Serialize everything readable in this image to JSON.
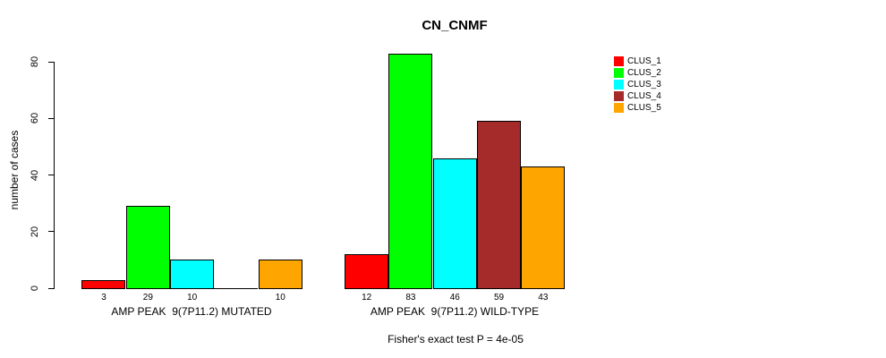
{
  "chart_data": {
    "type": "bar",
    "title": "CN_CNMF",
    "ylabel": "number of cases",
    "y_ticks": [
      0,
      20,
      40,
      60,
      80
    ],
    "ylim": [
      0,
      84
    ],
    "grid": false,
    "legend_position": "right",
    "categories": [
      "AMP PEAK  9(7P11.2) MUTATED",
      "AMP PEAK  9(7P11.2) WILD-TYPE"
    ],
    "series": [
      {
        "name": "CLUS_1",
        "color": "#FF0000",
        "values": [
          3,
          12
        ]
      },
      {
        "name": "CLUS_2",
        "color": "#00FF00",
        "values": [
          29,
          83
        ]
      },
      {
        "name": "CLUS_3",
        "color": "#00FFFF",
        "values": [
          10,
          46
        ]
      },
      {
        "name": "CLUS_4",
        "color": "#A52A2A",
        "values": [
          0,
          59
        ]
      },
      {
        "name": "CLUS_5",
        "color": "#FFA500",
        "values": [
          10,
          43
        ]
      }
    ],
    "bar_value_labels": [
      [
        "3",
        "29",
        "10",
        "",
        "10"
      ],
      [
        "12",
        "83",
        "46",
        "59",
        "43"
      ]
    ],
    "groups": [
      {
        "label": "AMP PEAK  9(7P11.2) MUTATED"
      },
      {
        "label": "AMP PEAK  9(7P11.2) WILD-TYPE"
      }
    ],
    "footnote": "Fisher's exact test P = 4e-05"
  }
}
